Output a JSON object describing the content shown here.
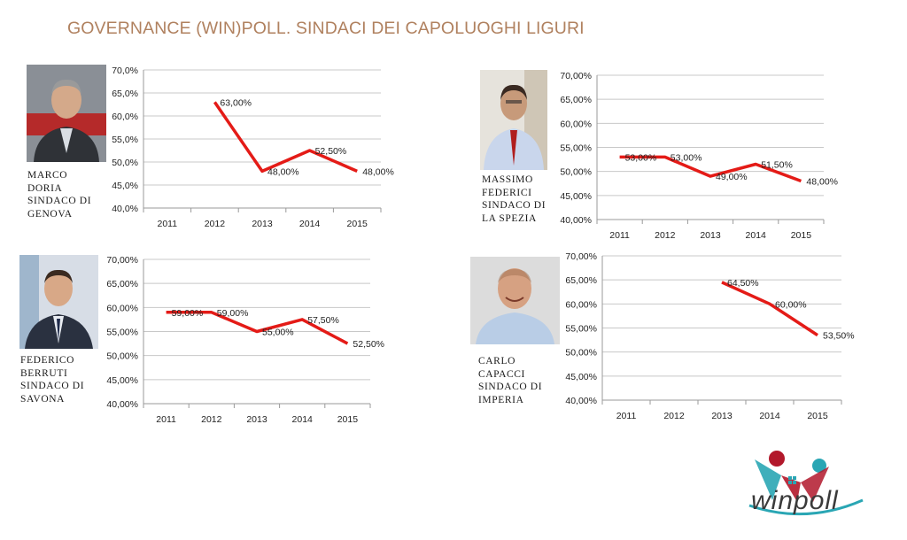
{
  "page": {
    "title": "GOVERNANCE (WIN)POLL. SINDACI DEI CAPOLUOGHI LIGURI"
  },
  "persons": [
    {
      "caption": "MARCO\nDORIA\nSINDACO DI\nGENOVA"
    },
    {
      "caption": "MASSIMO\nFEDERICI\nSINDACO DI\nLA SPEZIA"
    },
    {
      "caption": "FEDERICO\nBERRUTI\nSINDACO DI\nSAVONA"
    },
    {
      "caption": "CARLO\nCAPACCI\nSINDACO DI\nIMPERIA"
    }
  ],
  "logo": {
    "text": "winpoll"
  },
  "colors": {
    "line": "#e41b17",
    "title": "#b0815f",
    "grid": "#c8c8c8"
  },
  "chart_data": [
    {
      "type": "line",
      "categories": [
        "2011",
        "2012",
        "2013",
        "2014",
        "2015"
      ],
      "series": [
        {
          "values": [
            null,
            63.0,
            48.0,
            52.5,
            48.0
          ]
        }
      ],
      "data_labels": [
        "",
        "63,00%",
        "48,00%",
        "52,50%",
        "48,00%"
      ],
      "yticks": [
        "40,0%",
        "45,0%",
        "50,0%",
        "55,0%",
        "60,0%",
        "65,0%",
        "70,0%"
      ],
      "ylim": [
        40,
        70
      ],
      "grid": true
    },
    {
      "type": "line",
      "categories": [
        "2011",
        "2012",
        "2013",
        "2014",
        "2015"
      ],
      "series": [
        {
          "values": [
            53.0,
            53.0,
            49.0,
            51.5,
            48.0
          ]
        }
      ],
      "data_labels": [
        "53,00%",
        "53,00%",
        "49,00%",
        "51,50%",
        "48,00%"
      ],
      "yticks": [
        "40,00%",
        "45,00%",
        "50,00%",
        "55,00%",
        "60,00%",
        "65,00%",
        "70,00%"
      ],
      "ylim": [
        40,
        70
      ],
      "grid": true
    },
    {
      "type": "line",
      "categories": [
        "2011",
        "2012",
        "2013",
        "2014",
        "2015"
      ],
      "series": [
        {
          "values": [
            59.0,
            59.0,
            55.0,
            57.5,
            52.5
          ]
        }
      ],
      "data_labels": [
        "59,00%",
        "59,00%",
        "55,00%",
        "57,50%",
        "52,50%"
      ],
      "yticks": [
        "40,00%",
        "45,00%",
        "50,00%",
        "55,00%",
        "60,00%",
        "65,00%",
        "70,00%"
      ],
      "ylim": [
        40,
        70
      ],
      "grid": true
    },
    {
      "type": "line",
      "categories": [
        "2011",
        "2012",
        "2013",
        "2014",
        "2015"
      ],
      "series": [
        {
          "values": [
            null,
            null,
            64.5,
            60.0,
            53.5
          ]
        }
      ],
      "data_labels": [
        "",
        "",
        "64,50%",
        "60,00%",
        "53,50%"
      ],
      "yticks": [
        "40,00%",
        "45,00%",
        "50,00%",
        "55,00%",
        "60,00%",
        "65,00%",
        "70,00%"
      ],
      "ylim": [
        40,
        70
      ],
      "grid": true
    }
  ]
}
